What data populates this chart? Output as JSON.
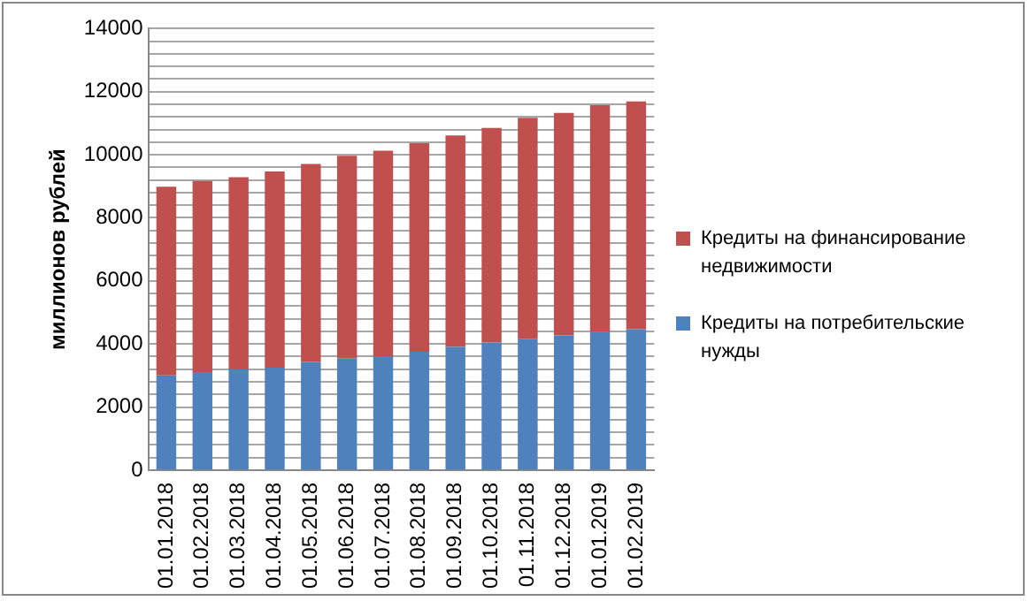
{
  "chart_data": {
    "type": "bar",
    "stacked": true,
    "ylabel": "миллионов рублей",
    "categories": [
      "01.01.2018",
      "01.02.2018",
      "01.03.2018",
      "01.04.2018",
      "01.05.2018",
      "01.06.2018",
      "01.07.2018",
      "01.08.2018",
      "01.09.2018",
      "01.10.2018",
      "01.11.2018",
      "01.12.2018",
      "01.01.2019",
      "01.02.2019"
    ],
    "series": [
      {
        "name": "Кредиты на потребительские нужды",
        "color": "#4f81bd",
        "values": [
          3000,
          3110,
          3190,
          3250,
          3430,
          3550,
          3610,
          3750,
          3910,
          4050,
          4150,
          4270,
          4390,
          4470
        ]
      },
      {
        "name": "Кредиты на финансирование недвижимости",
        "color": "#c0504d",
        "values": [
          5990,
          6060,
          6100,
          6220,
          6280,
          6420,
          6520,
          6620,
          6700,
          6800,
          7020,
          7060,
          7180,
          7220
        ]
      }
    ],
    "ylim": [
      0,
      14000
    ],
    "yticks": [
      0,
      {
        "value": 400,
        "label": null
      },
      {
        "value": 800,
        "label": null
      },
      {
        "value": 1200,
        "label": null
      },
      {
        "value": 1600,
        "label": null
      },
      2000,
      {
        "value": 2400,
        "label": null
      },
      {
        "value": 2800,
        "label": null
      },
      {
        "value": 3200,
        "label": null
      },
      {
        "value": 3600,
        "label": null
      },
      4000,
      {
        "value": 4400,
        "label": null
      },
      {
        "value": 4800,
        "label": null
      },
      {
        "value": 5200,
        "label": null
      },
      {
        "value": 5600,
        "label": null
      },
      6000,
      {
        "value": 6400,
        "label": null
      },
      {
        "value": 6800,
        "label": null
      },
      {
        "value": 7200,
        "label": null
      },
      {
        "value": 7600,
        "label": null
      },
      8000,
      {
        "value": 8400,
        "label": null
      },
      {
        "value": 8800,
        "label": null
      },
      {
        "value": 9200,
        "label": null
      },
      {
        "value": 9600,
        "label": null
      },
      10000,
      {
        "value": 10400,
        "label": null
      },
      {
        "value": 10800,
        "label": null
      },
      {
        "value": 11200,
        "label": null
      },
      {
        "value": 11600,
        "label": null
      },
      12000,
      {
        "value": 12400,
        "label": null
      },
      {
        "value": 12800,
        "label": null
      },
      {
        "value": 13200,
        "label": null
      },
      {
        "value": 13600,
        "label": null
      },
      14000
    ],
    "grid": "y",
    "legend": "right"
  }
}
